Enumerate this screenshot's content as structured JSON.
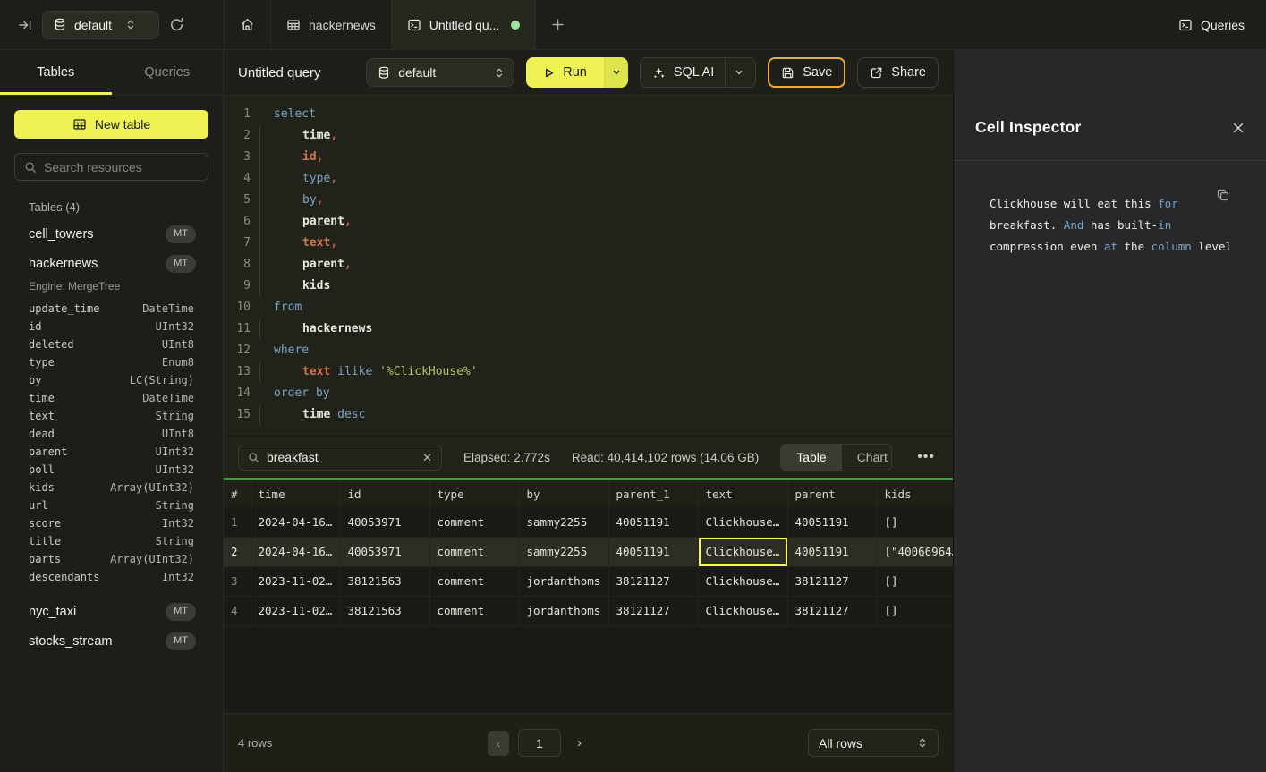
{
  "colors": {
    "accent_yellow": "#eef353",
    "save_border": "#edaa3c",
    "green_bar": "#3f9e3c",
    "tab_dot": "#9fe8a0",
    "selected_cell_border": "#f6f65a"
  },
  "topbar": {
    "database_selector": "default",
    "tabs": [
      {
        "icon": "home",
        "label": ""
      },
      {
        "icon": "table",
        "label": "hackernews"
      },
      {
        "icon": "terminal",
        "label": "Untitled qu...",
        "active": true,
        "dirty": true
      }
    ],
    "queries_label": "Queries"
  },
  "sidebar": {
    "tabs": [
      {
        "label": "Tables",
        "active": true
      },
      {
        "label": "Queries",
        "active": false
      }
    ],
    "new_table_label": "New table",
    "search_placeholder": "Search resources",
    "section_label": "Tables (4)",
    "tables": [
      {
        "name": "cell_towers",
        "badge": "MT"
      },
      {
        "name": "hackernews",
        "badge": "MT",
        "engine": "Engine: MergeTree",
        "columns": [
          [
            "update_time",
            "DateTime"
          ],
          [
            "id",
            "UInt32"
          ],
          [
            "deleted",
            "UInt8"
          ],
          [
            "type",
            "Enum8"
          ],
          [
            "by",
            "LC(String)"
          ],
          [
            "time",
            "DateTime"
          ],
          [
            "text",
            "String"
          ],
          [
            "dead",
            "UInt8"
          ],
          [
            "parent",
            "UInt32"
          ],
          [
            "poll",
            "UInt32"
          ],
          [
            "kids",
            "Array(UInt32)"
          ],
          [
            "url",
            "String"
          ],
          [
            "score",
            "Int32"
          ],
          [
            "title",
            "String"
          ],
          [
            "parts",
            "Array(UInt32)"
          ],
          [
            "descendants",
            "Int32"
          ]
        ]
      },
      {
        "name": "nyc_taxi",
        "badge": "MT"
      },
      {
        "name": "stocks_stream",
        "badge": "MT"
      }
    ]
  },
  "header": {
    "title": "Untitled query",
    "database_selector": "default",
    "run_label": "Run",
    "sql_ai_label": "SQL AI",
    "save_label": "Save",
    "share_label": "Share"
  },
  "editor": {
    "lines": [
      {
        "indent": 0,
        "tokens": [
          {
            "t": "select",
            "c": "k"
          }
        ]
      },
      {
        "indent": 1,
        "tokens": [
          {
            "t": "time",
            "c": "w"
          },
          {
            "t": ",",
            "c": "c"
          }
        ]
      },
      {
        "indent": 1,
        "tokens": [
          {
            "t": "id",
            "c": "o"
          },
          {
            "t": ",",
            "c": "c"
          }
        ]
      },
      {
        "indent": 1,
        "tokens": [
          {
            "t": "type",
            "c": "k"
          },
          {
            "t": ",",
            "c": "c"
          }
        ]
      },
      {
        "indent": 1,
        "tokens": [
          {
            "t": "by",
            "c": "k"
          },
          {
            "t": ",",
            "c": "c"
          }
        ]
      },
      {
        "indent": 1,
        "tokens": [
          {
            "t": "parent",
            "c": "w"
          },
          {
            "t": ",",
            "c": "c"
          }
        ]
      },
      {
        "indent": 1,
        "tokens": [
          {
            "t": "text",
            "c": "o"
          },
          {
            "t": ",",
            "c": "c"
          }
        ]
      },
      {
        "indent": 1,
        "tokens": [
          {
            "t": "parent",
            "c": "w"
          },
          {
            "t": ",",
            "c": "c"
          }
        ]
      },
      {
        "indent": 1,
        "tokens": [
          {
            "t": "kids",
            "c": "w"
          }
        ]
      },
      {
        "indent": 0,
        "tokens": [
          {
            "t": "from",
            "c": "k"
          }
        ]
      },
      {
        "indent": 1,
        "tokens": [
          {
            "t": "hackernews",
            "c": "w"
          }
        ]
      },
      {
        "indent": 0,
        "tokens": [
          {
            "t": "where",
            "c": "k"
          }
        ]
      },
      {
        "indent": 1,
        "tokens": [
          {
            "t": "text",
            "c": "o"
          },
          {
            "t": " ",
            "c": "w"
          },
          {
            "t": "ilike",
            "c": "k"
          },
          {
            "t": " ",
            "c": "w"
          },
          {
            "t": "'%ClickHouse%'",
            "c": "s"
          }
        ]
      },
      {
        "indent": 0,
        "tokens": [
          {
            "t": "order by",
            "c": "k"
          }
        ]
      },
      {
        "indent": 1,
        "tokens": [
          {
            "t": "time",
            "c": "w"
          },
          {
            "t": " ",
            "c": "w"
          },
          {
            "t": "desc",
            "c": "k"
          }
        ]
      }
    ]
  },
  "results": {
    "search_value": "breakfast",
    "elapsed": "Elapsed: 2.772s",
    "read": "Read: 40,414,102 rows (14.06 GB)",
    "view_toggle": [
      {
        "label": "Table",
        "active": true
      },
      {
        "label": "Chart",
        "active": false
      }
    ],
    "table": {
      "columns": [
        "#",
        "time",
        "id",
        "type",
        "by",
        "parent_1",
        "text",
        "parent",
        "kids"
      ],
      "rows": [
        [
          "1",
          "2024-04-16…",
          "40053971",
          "comment",
          "sammy2255",
          "40051191",
          "Clickhouse…",
          "40051191",
          "[]"
        ],
        [
          "2",
          "2024-04-16…",
          "40053971",
          "comment",
          "sammy2255",
          "40051191",
          "Clickhouse…",
          "40051191",
          "[\"40066964…"
        ],
        [
          "3",
          "2023-11-02…",
          "38121563",
          "comment",
          "jordanthoms",
          "38121127",
          "Clickhouse…",
          "38121127",
          "[]"
        ],
        [
          "4",
          "2023-11-02…",
          "38121563",
          "comment",
          "jordanthoms",
          "38121127",
          "Clickhouse…",
          "38121127",
          "[]"
        ]
      ],
      "selected_row": 1,
      "selected_col": 6
    }
  },
  "footer": {
    "row_count": "4 rows",
    "page": "1",
    "page_size": "All rows"
  },
  "inspector": {
    "title": "Cell Inspector",
    "lines": [
      [
        {
          "t": "Clickhouse will eat this ",
          "c": "w"
        },
        {
          "t": "for",
          "c": "b"
        }
      ],
      [
        {
          "t": "breakfast. ",
          "c": "w"
        },
        {
          "t": "And",
          "c": "b"
        },
        {
          "t": " has built-",
          "c": "w"
        },
        {
          "t": "in",
          "c": "b"
        }
      ],
      [
        {
          "t": "compression even ",
          "c": "w"
        },
        {
          "t": "at",
          "c": "b"
        },
        {
          "t": " the ",
          "c": "w"
        },
        {
          "t": "column",
          "c": "b"
        },
        {
          "t": " level",
          "c": "w"
        }
      ]
    ]
  }
}
